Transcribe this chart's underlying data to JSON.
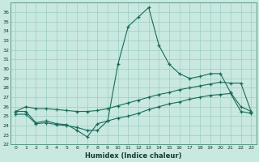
{
  "x": [
    0,
    1,
    2,
    3,
    4,
    5,
    6,
    7,
    8,
    9,
    10,
    11,
    12,
    13,
    14,
    15,
    16,
    17,
    18,
    19,
    20,
    21,
    22,
    23
  ],
  "line1": [
    25.5,
    25.5,
    24.3,
    24.5,
    24.2,
    24.1,
    23.5,
    22.8,
    24.2,
    24.5,
    30.5,
    34.5,
    35.5,
    36.5,
    32.5,
    30.5,
    29.5,
    29.0,
    29.2,
    29.5,
    29.5,
    27.5,
    26.0,
    25.5
  ],
  "line2": [
    25.5,
    26.0,
    25.8,
    25.8,
    25.7,
    25.6,
    25.5,
    25.5,
    25.6,
    25.8,
    26.1,
    26.4,
    26.7,
    27.0,
    27.3,
    27.5,
    27.8,
    28.0,
    28.2,
    28.4,
    28.6,
    28.5,
    28.5,
    25.5
  ],
  "line3": [
    25.2,
    25.2,
    24.2,
    24.3,
    24.1,
    24.0,
    23.8,
    23.5,
    23.5,
    24.5,
    24.8,
    25.0,
    25.3,
    25.7,
    26.0,
    26.3,
    26.5,
    26.8,
    27.0,
    27.2,
    27.3,
    27.4,
    25.5,
    25.3
  ],
  "line_color": "#1a6b5a",
  "bg_color": "#c8e8e0",
  "grid_color": "#9ecdc4",
  "xlabel": "Humidex (Indice chaleur)",
  "ylim": [
    22,
    37
  ],
  "xlim": [
    -0.5,
    23.5
  ],
  "yticks": [
    22,
    23,
    24,
    25,
    26,
    27,
    28,
    29,
    30,
    31,
    32,
    33,
    34,
    35,
    36
  ],
  "xticks": [
    0,
    1,
    2,
    3,
    4,
    5,
    6,
    7,
    8,
    9,
    10,
    11,
    12,
    13,
    14,
    15,
    16,
    17,
    18,
    19,
    20,
    21,
    22,
    23
  ],
  "marker": "+"
}
